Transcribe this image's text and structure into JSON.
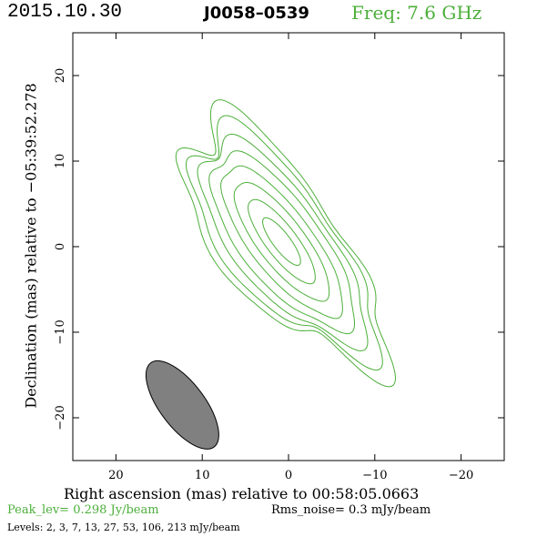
{
  "header": {
    "date": "2015.10.30",
    "source": "J0058–0539",
    "freq_label": "Freq:  7.6  GHz",
    "freq_color": "#4caf3a"
  },
  "chart_data": {
    "type": "contour",
    "xlabel": "Right ascension (mas) relative to 00:58:05.0663",
    "ylabel": "Declination (mas) relative to −05:39:52.278",
    "xlim": [
      25,
      -25
    ],
    "ylim": [
      -25,
      25
    ],
    "xticks": [
      20,
      10,
      0,
      -10,
      -20
    ],
    "yticks": [
      20,
      10,
      0,
      -10,
      -20
    ],
    "xtick_labels": [
      "20",
      "10",
      "0",
      "−10",
      "−20"
    ],
    "ytick_labels": [
      "20",
      "10",
      "0",
      "−10",
      "−20"
    ],
    "contour_color": "#4caf3a",
    "contour_levels_mjy": [
      2,
      3,
      7,
      13,
      27,
      53,
      106,
      213
    ],
    "peak_jy_per_beam": 0.298,
    "rms_noise_mjy_per_beam": 0.3,
    "beam": {
      "ra_center": 12.3,
      "dec_center": -18.5,
      "major_mas": 12.2,
      "minor_mas": 2.6,
      "fill": "#808080"
    }
  },
  "footer": {
    "peak": "Peak_lev=   0.298  Jy/beam",
    "rms": "Rms_noise=    0.3  mJy/beam",
    "levels": "Levels:    2,    3,    7,   13,   27,   53,  106,  213  mJy/beam"
  }
}
